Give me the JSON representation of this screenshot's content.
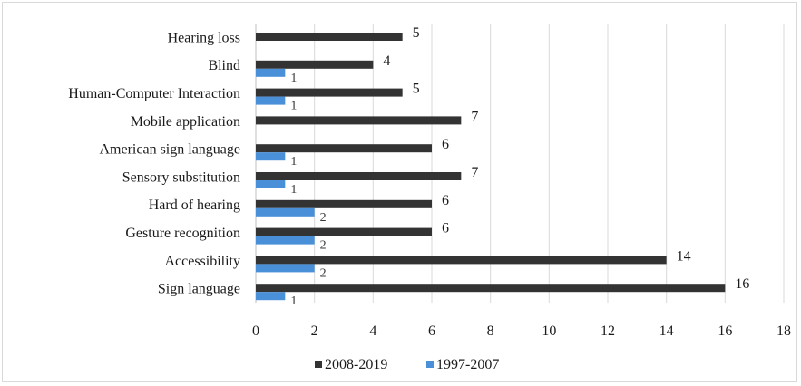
{
  "chart_data": {
    "type": "bar",
    "orientation": "horizontal",
    "title": "",
    "xlabel": "",
    "ylabel": "",
    "xlim": [
      0,
      18
    ],
    "x_ticks": [
      "0",
      "2",
      "4",
      "6",
      "8",
      "10",
      "12",
      "14",
      "16",
      "18"
    ],
    "grid": "vertical",
    "legend_position": "bottom",
    "categories": [
      "Hearing loss",
      "Blind",
      "Human-Computer Interaction",
      "Mobile application",
      "American sign language",
      "Sensory substitution",
      "Hard of hearing",
      "Gesture recognition",
      "Accessibility",
      "Sign language"
    ],
    "series": [
      {
        "name": "2008-2019",
        "color": "#333333",
        "values": [
          5,
          4,
          5,
          7,
          6,
          7,
          6,
          6,
          14,
          16
        ],
        "labels": [
          "5",
          "4",
          "5",
          "7",
          "6",
          "7",
          "6",
          "6",
          "14",
          "16"
        ]
      },
      {
        "name": "1997-2007",
        "color": "#4a90d9",
        "values": [
          0,
          1,
          1,
          0,
          1,
          1,
          2,
          2,
          2,
          1
        ],
        "labels": [
          "",
          "1",
          "1",
          "",
          "1",
          "1",
          "2",
          "2",
          "2",
          "1"
        ]
      }
    ]
  }
}
